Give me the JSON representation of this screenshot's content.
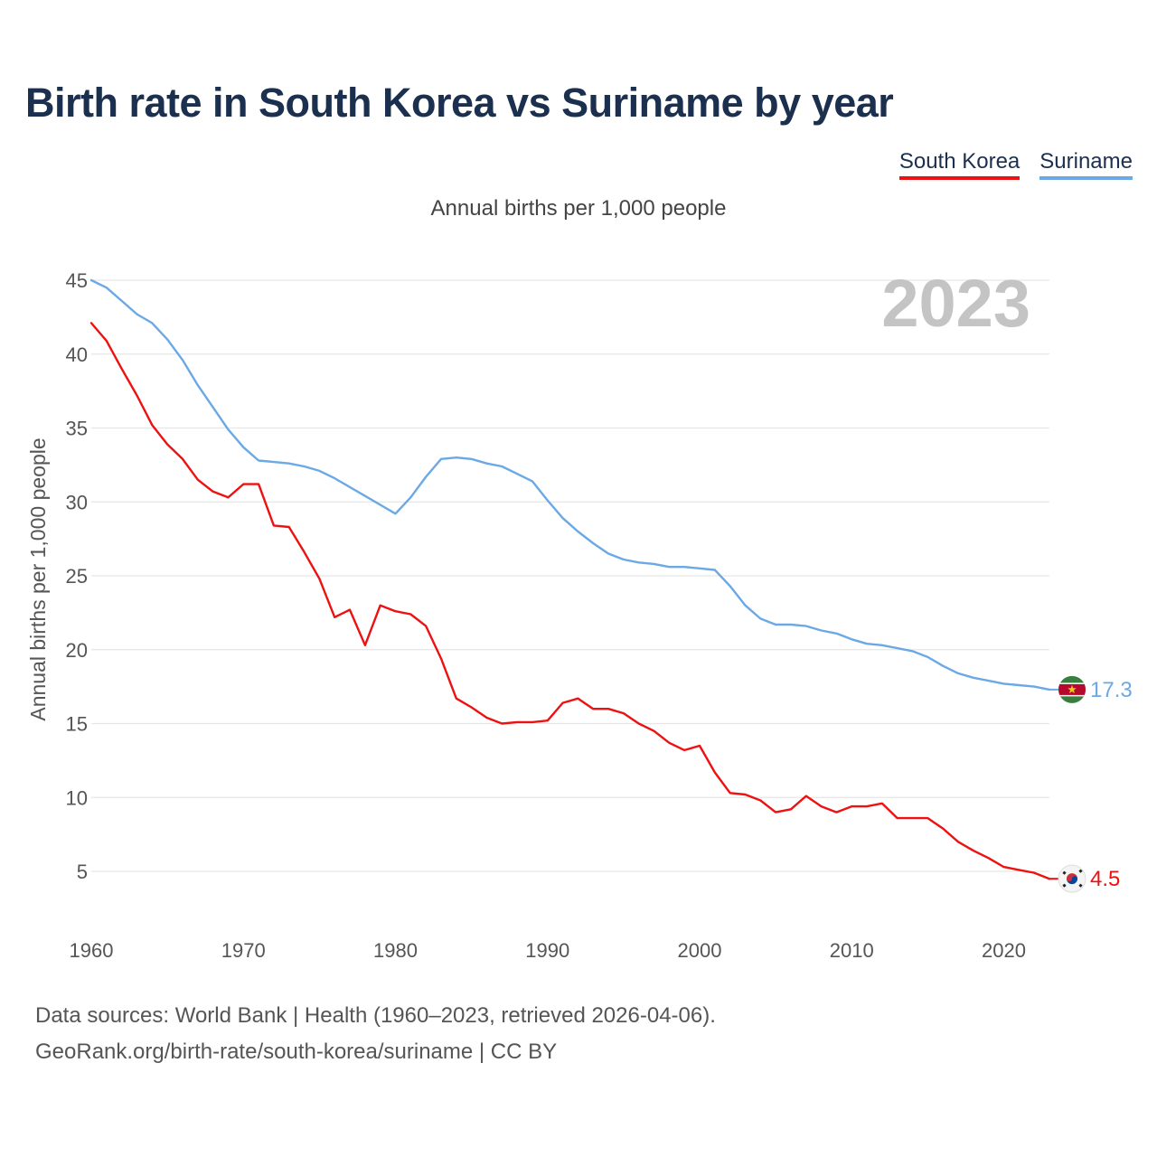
{
  "title": "Birth rate in South Korea vs Suriname by year",
  "subtitle": "Annual births per 1,000 people",
  "legend": [
    {
      "label": "South Korea",
      "color": "#ee1111"
    },
    {
      "label": "Suriname",
      "color": "#6aa9e6"
    }
  ],
  "footer": {
    "line1": "Data sources: World Bank | Health (1960–2023, retrieved 2026-04-06).",
    "line2": "GeoRank.org/birth-rate/south-korea/suriname | CC BY"
  },
  "chart_data": {
    "type": "line",
    "title": "Birth rate in South Korea vs Suriname by year",
    "xlabel": "",
    "ylabel": "Annual births per 1,000 people",
    "year_label": "2023",
    "xlim": [
      1960,
      2023
    ],
    "ylim": [
      0,
      45
    ],
    "x_ticks": [
      1960,
      1970,
      1980,
      1990,
      2000,
      2010,
      2020
    ],
    "y_ticks": [
      5,
      10,
      15,
      20,
      25,
      30,
      35,
      40,
      45
    ],
    "grid": true,
    "legend_position": "top-right",
    "x": [
      1960,
      1961,
      1962,
      1963,
      1964,
      1965,
      1966,
      1967,
      1968,
      1969,
      1970,
      1971,
      1972,
      1973,
      1974,
      1975,
      1976,
      1977,
      1978,
      1979,
      1980,
      1981,
      1982,
      1983,
      1984,
      1985,
      1986,
      1987,
      1988,
      1989,
      1990,
      1991,
      1992,
      1993,
      1994,
      1995,
      1996,
      1997,
      1998,
      1999,
      2000,
      2001,
      2002,
      2003,
      2004,
      2005,
      2006,
      2007,
      2008,
      2009,
      2010,
      2011,
      2012,
      2013,
      2014,
      2015,
      2016,
      2017,
      2018,
      2019,
      2020,
      2021,
      2022,
      2023
    ],
    "series": [
      {
        "name": "South Korea",
        "color": "#ee1111",
        "end_label": "4.5",
        "flag": "south-korea-flag",
        "values": [
          42.1,
          40.9,
          39.0,
          37.2,
          35.2,
          33.9,
          32.9,
          31.5,
          30.7,
          30.3,
          31.2,
          31.2,
          28.4,
          28.3,
          26.6,
          24.8,
          22.2,
          22.7,
          20.3,
          23.0,
          22.6,
          22.4,
          21.6,
          19.4,
          16.7,
          16.1,
          15.4,
          15.0,
          15.1,
          15.1,
          15.2,
          16.4,
          16.7,
          16.0,
          16.0,
          15.7,
          15.0,
          14.5,
          13.7,
          13.2,
          13.5,
          11.7,
          10.3,
          10.2,
          9.8,
          9.0,
          9.2,
          10.1,
          9.4,
          9.0,
          9.4,
          9.4,
          9.6,
          8.6,
          8.6,
          8.6,
          7.9,
          7.0,
          6.4,
          5.9,
          5.3,
          5.1,
          4.9,
          4.5
        ]
      },
      {
        "name": "Suriname",
        "color": "#6aa9e6",
        "end_label": "17.3",
        "flag": "suriname-flag",
        "values": [
          45.0,
          44.5,
          43.6,
          42.7,
          42.1,
          41.0,
          39.6,
          37.9,
          36.4,
          34.9,
          33.7,
          32.8,
          32.7,
          32.6,
          32.4,
          32.1,
          31.6,
          31.0,
          30.4,
          29.8,
          29.2,
          30.3,
          31.7,
          32.9,
          33.0,
          32.9,
          32.6,
          32.4,
          31.9,
          31.4,
          30.1,
          28.9,
          28.0,
          27.2,
          26.5,
          26.1,
          25.9,
          25.8,
          25.6,
          25.6,
          25.5,
          25.4,
          24.3,
          23.0,
          22.1,
          21.7,
          21.7,
          21.6,
          21.3,
          21.1,
          20.7,
          20.4,
          20.3,
          20.1,
          19.9,
          19.5,
          18.9,
          18.4,
          18.1,
          17.9,
          17.7,
          17.6,
          17.5,
          17.3
        ]
      }
    ]
  }
}
